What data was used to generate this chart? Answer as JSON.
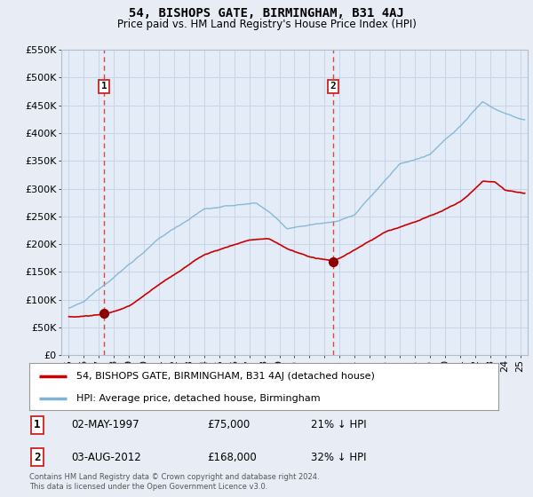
{
  "title": "54, BISHOPS GATE, BIRMINGHAM, B31 4AJ",
  "subtitle": "Price paid vs. HM Land Registry's House Price Index (HPI)",
  "background_color": "#e8edf5",
  "plot_bg_color": "#e4ecf7",
  "ylim": [
    0,
    550000
  ],
  "yticks": [
    0,
    50000,
    100000,
    150000,
    200000,
    250000,
    300000,
    350000,
    400000,
    450000,
    500000,
    550000
  ],
  "xlim_start": 1994.5,
  "xlim_end": 2025.5,
  "sale1_x": 1997.33,
  "sale1_y": 75000,
  "sale1_label": "1",
  "sale1_date": "02-MAY-1997",
  "sale1_price": "£75,000",
  "sale1_hpi": "21% ↓ HPI",
  "sale2_x": 2012.58,
  "sale2_y": 168000,
  "sale2_label": "2",
  "sale2_date": "03-AUG-2012",
  "sale2_price": "£168,000",
  "sale2_hpi": "32% ↓ HPI",
  "legend_line1": "54, BISHOPS GATE, BIRMINGHAM, B31 4AJ (detached house)",
  "legend_line2": "HPI: Average price, detached house, Birmingham",
  "footer": "Contains HM Land Registry data © Crown copyright and database right 2024.\nThis data is licensed under the Open Government Licence v3.0.",
  "line_color_red": "#cc0000",
  "line_color_blue": "#7fb3d3",
  "dashed_color": "#dd4444",
  "marker_color": "#8b0000",
  "grid_color": "#c8d4e8",
  "spine_color": "#b0bcd0"
}
